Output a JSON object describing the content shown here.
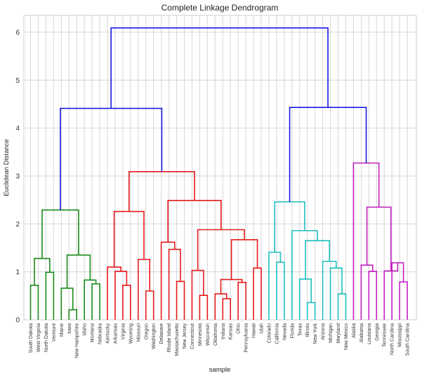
{
  "chart_data": {
    "type": "dendrogram",
    "title": "Complete Linkage Dendrogram",
    "xlabel": "sample",
    "ylabel": "Euclidean Distance",
    "ylim": [
      0,
      6.35
    ],
    "yticks": [
      0,
      1,
      2,
      3,
      4,
      5,
      6
    ],
    "grid": true,
    "leaves": [
      "South Dakota",
      "West Virginia",
      "North Dakota",
      "Vermont",
      "Maine",
      "Iowa",
      "New Hampshire",
      "Idaho",
      "Montana",
      "Nebraska",
      "Kentucky",
      "Arkansas",
      "Virginia",
      "Wyoming",
      "Missouri",
      "Oregon",
      "Washington",
      "Delaware",
      "Rhode Island",
      "Massachusetts",
      "New Jersey",
      "Connecticut",
      "Minnesota",
      "Wisconsin",
      "Oklahoma",
      "Indiana",
      "Kansas",
      "Ohio",
      "Pennsylvania",
      "Hawaii",
      "Utah",
      "Colorado",
      "California",
      "Nevada",
      "Florida",
      "Texas",
      "Illinois",
      "New York",
      "Arizona",
      "Michigan",
      "Maryland",
      "New Mexico",
      "Alaska",
      "Alabama",
      "Louisiana",
      "Georgia",
      "Tennessee",
      "North Carolina",
      "Mississippi",
      "South Carolina"
    ],
    "colors": {
      "green": "#1a8a1a",
      "red": "#e41a1c",
      "cyan": "#1fbfbf",
      "magenta": "#c41fc4",
      "blue": "#1a1ae6"
    },
    "merges": [
      {
        "left": "L0",
        "right": "L1",
        "height": 0.72,
        "color": "green"
      },
      {
        "left": "L2",
        "right": "L3",
        "height": 0.99,
        "color": "green"
      },
      {
        "left": "M0",
        "right": "M1",
        "height": 1.28,
        "color": "green"
      },
      {
        "left": "L5",
        "right": "L6",
        "height": 0.21,
        "color": "green"
      },
      {
        "left": "L4",
        "right": "M3",
        "height": 0.66,
        "color": "green"
      },
      {
        "left": "L8",
        "right": "L9",
        "height": 0.75,
        "color": "green"
      },
      {
        "left": "L7",
        "right": "M5",
        "height": 0.83,
        "color": "green"
      },
      {
        "left": "M4",
        "right": "M6",
        "height": 1.35,
        "color": "green"
      },
      {
        "left": "M2",
        "right": "M7",
        "height": 2.29,
        "color": "green"
      },
      {
        "left": "L12",
        "right": "L13",
        "height": 0.72,
        "color": "red"
      },
      {
        "left": "L11",
        "right": "M9",
        "height": 1.01,
        "color": "red"
      },
      {
        "left": "L10",
        "right": "M10",
        "height": 1.1,
        "color": "red"
      },
      {
        "left": "L15",
        "right": "L16",
        "height": 0.6,
        "color": "red"
      },
      {
        "left": "L14",
        "right": "M12",
        "height": 1.26,
        "color": "red"
      },
      {
        "left": "M11",
        "right": "M13",
        "height": 2.26,
        "color": "red"
      },
      {
        "left": "L19",
        "right": "L20",
        "height": 0.8,
        "color": "red"
      },
      {
        "left": "L18",
        "right": "M15",
        "height": 1.47,
        "color": "red"
      },
      {
        "left": "L17",
        "right": "M16",
        "height": 1.62,
        "color": "red"
      },
      {
        "left": "L22",
        "right": "L23",
        "height": 0.51,
        "color": "red"
      },
      {
        "left": "L21",
        "right": "M18",
        "height": 1.03,
        "color": "red"
      },
      {
        "left": "L25",
        "right": "L26",
        "height": 0.44,
        "color": "red"
      },
      {
        "left": "L24",
        "right": "M20",
        "height": 0.54,
        "color": "red"
      },
      {
        "left": "L27",
        "right": "L28",
        "height": 0.78,
        "color": "red"
      },
      {
        "left": "M21",
        "right": "M22",
        "height": 0.84,
        "color": "red"
      },
      {
        "left": "L29",
        "right": "L30",
        "height": 1.08,
        "color": "red"
      },
      {
        "left": "M23",
        "right": "M24",
        "height": 1.67,
        "color": "red"
      },
      {
        "left": "M19",
        "right": "M25",
        "height": 1.88,
        "color": "red"
      },
      {
        "left": "M17",
        "right": "M26",
        "height": 2.49,
        "color": "red"
      },
      {
        "left": "M14",
        "right": "M27",
        "height": 3.09,
        "color": "red"
      },
      {
        "left": "L32",
        "right": "L33",
        "height": 1.2,
        "color": "cyan"
      },
      {
        "left": "L31",
        "right": "M29",
        "height": 1.41,
        "color": "cyan"
      },
      {
        "left": "L36",
        "right": "L37",
        "height": 0.36,
        "color": "cyan"
      },
      {
        "left": "L35",
        "right": "M31",
        "height": 0.85,
        "color": "cyan"
      },
      {
        "left": "L40",
        "right": "L41",
        "height": 0.54,
        "color": "cyan"
      },
      {
        "left": "L39",
        "right": "M33",
        "height": 1.08,
        "color": "cyan"
      },
      {
        "left": "L38",
        "right": "M34",
        "height": 1.22,
        "color": "cyan"
      },
      {
        "left": "M32",
        "right": "M35",
        "height": 1.65,
        "color": "cyan"
      },
      {
        "left": "L34",
        "right": "M36",
        "height": 1.86,
        "color": "cyan"
      },
      {
        "left": "M30",
        "right": "M37",
        "height": 2.46,
        "color": "cyan"
      },
      {
        "left": "L44",
        "right": "L45",
        "height": 1.01,
        "color": "magenta"
      },
      {
        "left": "L43",
        "right": "M39",
        "height": 1.14,
        "color": "magenta"
      },
      {
        "left": "L48",
        "right": "L49",
        "height": 0.79,
        "color": "magenta"
      },
      {
        "left": "L47",
        "right": "M41",
        "height": 1.19,
        "color": "magenta"
      },
      {
        "left": "L46",
        "right": "M42",
        "height": 1.02,
        "color": "magenta"
      },
      {
        "left": "M40",
        "right": "M43",
        "height": 2.35,
        "color": "magenta"
      },
      {
        "left": "L42",
        "right": "M44",
        "height": 3.27,
        "color": "magenta"
      },
      {
        "left": "M38",
        "right": "M45",
        "height": 4.43,
        "color": "blue"
      },
      {
        "left": "M8",
        "right": "M28",
        "height": 4.41,
        "color": "blue"
      },
      {
        "left": "M47",
        "right": "M46",
        "height": 6.09,
        "color": "blue"
      }
    ]
  }
}
